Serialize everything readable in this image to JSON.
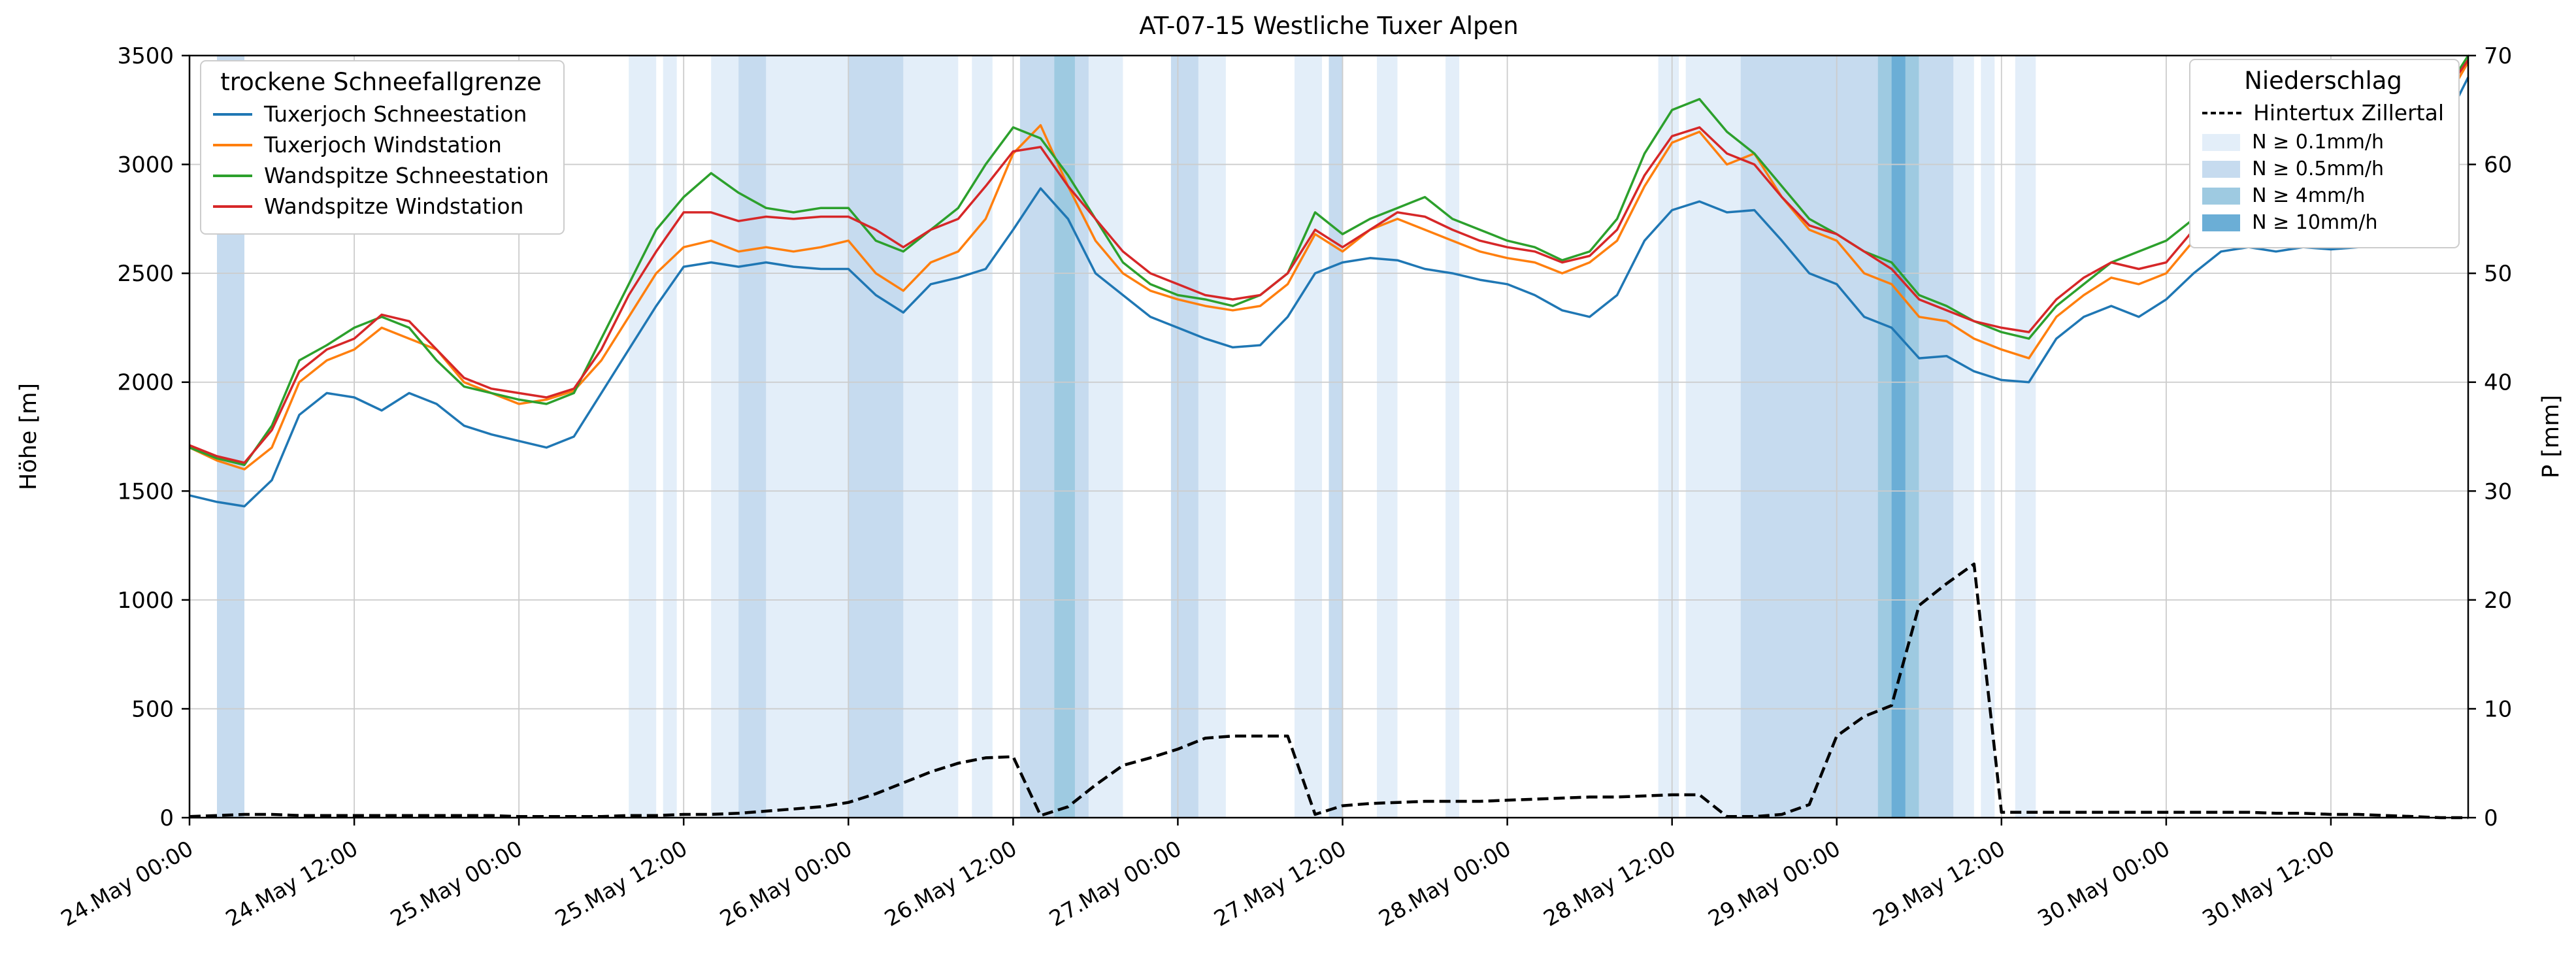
{
  "chart_data": {
    "type": "line",
    "title": "AT-07-15 Westliche Tuxer Alpen",
    "ylabel_left": "Höhe [m]",
    "ylabel_right": "P [mm]",
    "ylim_left": [
      0,
      3500
    ],
    "ylim_right": [
      0,
      70
    ],
    "y_ticks_left": [
      0,
      500,
      1000,
      1500,
      2000,
      2500,
      3000,
      3500
    ],
    "y_ticks_right": [
      0,
      10,
      20,
      30,
      40,
      50,
      60,
      70
    ],
    "grid": true,
    "legend_left_title": "trockene Schneefallgrenze",
    "legend_right_title": "Niederschlag",
    "band_legend": [
      "N ≥ 0.1mm/h",
      "N ≥ 0.5mm/h",
      "N ≥ 4mm/h",
      "N ≥ 10mm/h"
    ],
    "x_tick_hours": [
      0,
      12,
      24,
      36,
      48,
      60,
      72,
      84,
      96,
      108,
      120,
      132,
      144,
      156
    ],
    "x_tick_labels": [
      "24.May 00:00",
      "24.May 12:00",
      "25.May 00:00",
      "25.May 12:00",
      "26.May 00:00",
      "26.May 12:00",
      "27.May 00:00",
      "27.May 12:00",
      "28.May 00:00",
      "28.May 12:00",
      "29.May 00:00",
      "29.May 12:00",
      "30.May 00:00",
      "30.May 12:00"
    ],
    "x_end_hour": 166,
    "time_step_hours": 2,
    "band_colors": {
      "0.1": "#e3eef9",
      "0.5": "#c6dbef",
      "4": "#9ecae1",
      "10": "#6baed6"
    },
    "precip_bands": [
      {
        "start": 2,
        "end": 4,
        "level": "0.5"
      },
      {
        "start": 32,
        "end": 34,
        "level": "0.1"
      },
      {
        "start": 34.5,
        "end": 35.5,
        "level": "0.1"
      },
      {
        "start": 38,
        "end": 52,
        "level": "0.1"
      },
      {
        "start": 40,
        "end": 42,
        "level": "0.5"
      },
      {
        "start": 48,
        "end": 52,
        "level": "0.5"
      },
      {
        "start": 52,
        "end": 56,
        "level": "0.1"
      },
      {
        "start": 57,
        "end": 58.5,
        "level": "0.1"
      },
      {
        "start": 60.5,
        "end": 65.5,
        "level": "0.5"
      },
      {
        "start": 63,
        "end": 64.5,
        "level": "4"
      },
      {
        "start": 65.5,
        "end": 68,
        "level": "0.1"
      },
      {
        "start": 71.5,
        "end": 73.5,
        "level": "0.5"
      },
      {
        "start": 73.5,
        "end": 75.5,
        "level": "0.1"
      },
      {
        "start": 80.5,
        "end": 82.5,
        "level": "0.1"
      },
      {
        "start": 83,
        "end": 84,
        "level": "0.5"
      },
      {
        "start": 86.5,
        "end": 88,
        "level": "0.1"
      },
      {
        "start": 91.5,
        "end": 92.5,
        "level": "0.1"
      },
      {
        "start": 107,
        "end": 108.5,
        "level": "0.1"
      },
      {
        "start": 109,
        "end": 113,
        "level": "0.1"
      },
      {
        "start": 113,
        "end": 123,
        "level": "0.5"
      },
      {
        "start": 123,
        "end": 126,
        "level": "4"
      },
      {
        "start": 124,
        "end": 125,
        "level": "10"
      },
      {
        "start": 126,
        "end": 128.5,
        "level": "0.5"
      },
      {
        "start": 128.5,
        "end": 130,
        "level": "0.1"
      },
      {
        "start": 130.5,
        "end": 131.5,
        "level": "0.1"
      },
      {
        "start": 133,
        "end": 134.5,
        "level": "0.1"
      }
    ],
    "series": [
      {
        "name": "Tuxerjoch Schneestation",
        "color": "#1f77b4",
        "axis": "left",
        "dash": false,
        "values": [
          1480,
          1450,
          1430,
          1550,
          1850,
          1950,
          1930,
          1870,
          1950,
          1900,
          1800,
          1760,
          1730,
          1700,
          1750,
          1950,
          2150,
          2350,
          2530,
          2550,
          2530,
          2550,
          2530,
          2520,
          2520,
          2400,
          2320,
          2450,
          2480,
          2520,
          2700,
          2890,
          2750,
          2500,
          2400,
          2300,
          2250,
          2200,
          2160,
          2170,
          2300,
          2500,
          2550,
          2570,
          2560,
          2520,
          2500,
          2470,
          2450,
          2400,
          2330,
          2300,
          2400,
          2650,
          2790,
          2830,
          2780,
          2790,
          2650,
          2500,
          2450,
          2300,
          2250,
          2110,
          2120,
          2050,
          2010,
          2000,
          2200,
          2300,
          2350,
          2300,
          2380,
          2500,
          2600,
          2620,
          2600,
          2620,
          2610,
          2620,
          2700,
          2900,
          3150,
          3400
        ]
      },
      {
        "name": "Tuxerjoch Windstation",
        "color": "#ff7f0e",
        "axis": "left",
        "dash": false,
        "values": [
          1700,
          1640,
          1600,
          1700,
          2000,
          2100,
          2150,
          2250,
          2200,
          2150,
          2000,
          1950,
          1900,
          1920,
          1960,
          2100,
          2300,
          2500,
          2620,
          2650,
          2600,
          2620,
          2600,
          2620,
          2650,
          2500,
          2420,
          2550,
          2600,
          2750,
          3050,
          3180,
          2900,
          2650,
          2500,
          2420,
          2380,
          2350,
          2330,
          2350,
          2450,
          2680,
          2600,
          2700,
          2750,
          2700,
          2650,
          2600,
          2570,
          2550,
          2500,
          2550,
          2650,
          2900,
          3100,
          3150,
          3000,
          3050,
          2850,
          2700,
          2650,
          2500,
          2450,
          2300,
          2280,
          2200,
          2150,
          2110,
          2300,
          2400,
          2480,
          2450,
          2500,
          2650,
          2780,
          2820,
          2800,
          2830,
          2800,
          2820,
          2900,
          3050,
          3250,
          3470
        ]
      },
      {
        "name": "Wandspitze Schneestation",
        "color": "#2ca02c",
        "axis": "left",
        "dash": false,
        "values": [
          1700,
          1650,
          1620,
          1800,
          2100,
          2170,
          2250,
          2300,
          2250,
          2100,
          1980,
          1950,
          1920,
          1900,
          1950,
          2200,
          2450,
          2700,
          2850,
          2960,
          2870,
          2800,
          2780,
          2800,
          2800,
          2650,
          2600,
          2700,
          2800,
          3000,
          3170,
          3120,
          2950,
          2750,
          2550,
          2450,
          2400,
          2380,
          2350,
          2400,
          2500,
          2780,
          2680,
          2750,
          2800,
          2850,
          2750,
          2700,
          2650,
          2620,
          2560,
          2600,
          2750,
          3050,
          3250,
          3300,
          3150,
          3050,
          2900,
          2750,
          2680,
          2600,
          2550,
          2400,
          2350,
          2280,
          2230,
          2200,
          2350,
          2450,
          2550,
          2600,
          2650,
          2750,
          2870,
          2750,
          2780,
          2850,
          2820,
          2850,
          2950,
          3100,
          3300,
          3500
        ]
      },
      {
        "name": "Wandspitze Windstation",
        "color": "#d62728",
        "axis": "left",
        "dash": false,
        "values": [
          1710,
          1660,
          1630,
          1780,
          2050,
          2150,
          2200,
          2310,
          2280,
          2150,
          2020,
          1970,
          1950,
          1930,
          1970,
          2150,
          2400,
          2600,
          2780,
          2780,
          2740,
          2760,
          2750,
          2760,
          2760,
          2700,
          2620,
          2700,
          2750,
          2900,
          3060,
          3080,
          2900,
          2750,
          2600,
          2500,
          2450,
          2400,
          2380,
          2400,
          2500,
          2700,
          2620,
          2700,
          2780,
          2760,
          2700,
          2650,
          2620,
          2600,
          2550,
          2580,
          2700,
          2950,
          3130,
          3170,
          3050,
          3000,
          2850,
          2720,
          2680,
          2600,
          2520,
          2380,
          2330,
          2280,
          2250,
          2230,
          2380,
          2480,
          2550,
          2520,
          2550,
          2700,
          2800,
          2830,
          2800,
          2870,
          2840,
          2860,
          2950,
          3100,
          3300,
          3480
        ]
      },
      {
        "name": "Hintertux Zillertal",
        "color": "#000000",
        "axis": "right",
        "dash": true,
        "values": [
          0.1,
          0.2,
          0.3,
          0.3,
          0.2,
          0.2,
          0.2,
          0.2,
          0.2,
          0.2,
          0.2,
          0.2,
          0.1,
          0.1,
          0.1,
          0.1,
          0.2,
          0.2,
          0.3,
          0.3,
          0.4,
          0.6,
          0.8,
          1.0,
          1.4,
          2.2,
          3.2,
          4.2,
          5.0,
          5.5,
          5.6,
          0.2,
          1.0,
          3.0,
          4.8,
          5.5,
          6.3,
          7.3,
          7.5,
          7.5,
          7.5,
          0.3,
          1.1,
          1.3,
          1.4,
          1.5,
          1.5,
          1.5,
          1.6,
          1.7,
          1.8,
          1.9,
          1.9,
          2.0,
          2.1,
          2.1,
          0.1,
          0.1,
          0.3,
          1.2,
          7.5,
          9.3,
          10.3,
          19.5,
          21.5,
          23.3,
          0.5,
          0.5,
          0.5,
          0.5,
          0.5,
          0.5,
          0.5,
          0.5,
          0.5,
          0.5,
          0.4,
          0.4,
          0.3,
          0.3,
          0.2,
          0.1,
          0.0,
          0.0
        ]
      }
    ]
  }
}
